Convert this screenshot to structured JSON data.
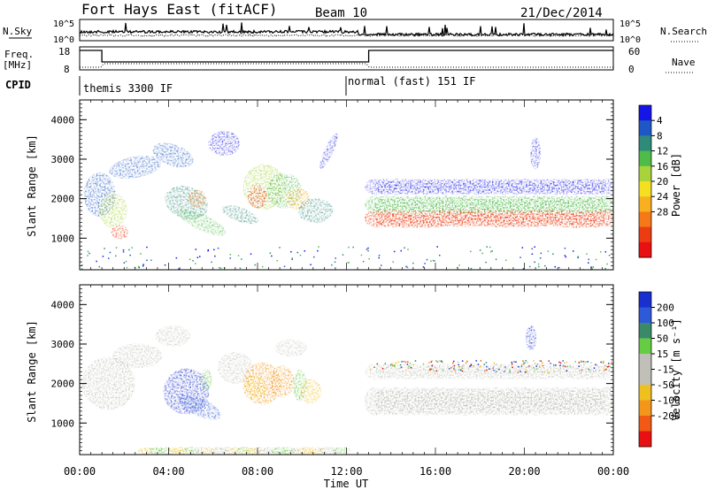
{
  "header": {
    "station": "Fort Hays East (fitACF)",
    "beam": "Beam 10",
    "date": "21/Dec/2014"
  },
  "nsky_panel": {
    "left_label": "N.Sky",
    "right_label": "N.Search",
    "left_ticks": [
      "10^5",
      "10^0"
    ],
    "right_ticks": [
      "10^5",
      "10^0"
    ]
  },
  "freq_panel": {
    "left_label_1": "Freq.",
    "left_label_2": "[MHz]",
    "right_label": "Nave",
    "left_ticks": [
      "18",
      "8"
    ],
    "right_ticks": [
      "60",
      "0"
    ]
  },
  "cpid_panel": {
    "label": "CPID",
    "modes": [
      {
        "name": "themis 3300 IF",
        "start_hour": 0
      },
      {
        "name": "normal (fast) 151 IF",
        "start_hour": 12
      }
    ]
  },
  "x_axis": {
    "title": "Time UT",
    "ticks": [
      "00:00",
      "04:00",
      "08:00",
      "12:00",
      "16:00",
      "20:00",
      "00:00"
    ]
  },
  "chart_data": [
    {
      "type": "heatmap",
      "title": "",
      "xlabel": "Time UT",
      "ylabel": "Slant Range [km]",
      "xlim": [
        0,
        24
      ],
      "ylim": [
        200,
        4500
      ],
      "yticks": [
        "1000",
        "2000",
        "3000",
        "4000"
      ],
      "colorbar_label": "Power [dB]",
      "colorbar_ticks": [
        "4",
        "8",
        "12",
        "16",
        "20",
        "24",
        "28"
      ],
      "colorbar_colors": [
        "#1515e8",
        "#1f58c6",
        "#2e8b7a",
        "#4fbc4a",
        "#a8d33a",
        "#f4e020",
        "#f8b020",
        "#f57a17",
        "#ee3c12",
        "#e81010"
      ],
      "features": [
        {
          "t_start": 0,
          "t_end": 9.5,
          "range_center_km": 1800,
          "level": 0.55
        },
        {
          "t_start": 7.5,
          "t_end": 10.5,
          "range_center_km": 2100,
          "level": 0.75
        },
        {
          "t_start": 13,
          "t_end": 24,
          "range_center_km": 1400,
          "level": 0.8
        }
      ]
    },
    {
      "type": "heatmap",
      "title": "",
      "xlabel": "Time UT",
      "ylabel": "Slant Range [km]",
      "xlim": [
        0,
        24
      ],
      "ylim": [
        200,
        4500
      ],
      "yticks": [
        "1000",
        "2000",
        "3000",
        "4000"
      ],
      "colorbar_label": "Velocity [m s⁻¹]",
      "colorbar_ticks": [
        "200",
        "100",
        "50",
        "15",
        "-15",
        "-50",
        "-100",
        "-200"
      ],
      "colorbar_colors": [
        "#1a2fcf",
        "#2e5ad9",
        "#3a8a6a",
        "#66cc44",
        "#c0c0b8",
        "#c0c0b8",
        "#f0c020",
        "#f5961c",
        "#f05a14",
        "#e81010"
      ],
      "features": [
        {
          "t_start": 0,
          "t_end": 5,
          "range_center_km": 1900,
          "velocity": 0
        },
        {
          "t_start": 3.8,
          "t_end": 6.5,
          "range_center_km": 1700,
          "velocity": 180
        },
        {
          "t_start": 6.5,
          "t_end": 11,
          "range_center_km": 2000,
          "velocity": -80
        },
        {
          "t_start": 13,
          "t_end": 24,
          "range_center_km": 1500,
          "velocity": 0
        }
      ]
    }
  ]
}
